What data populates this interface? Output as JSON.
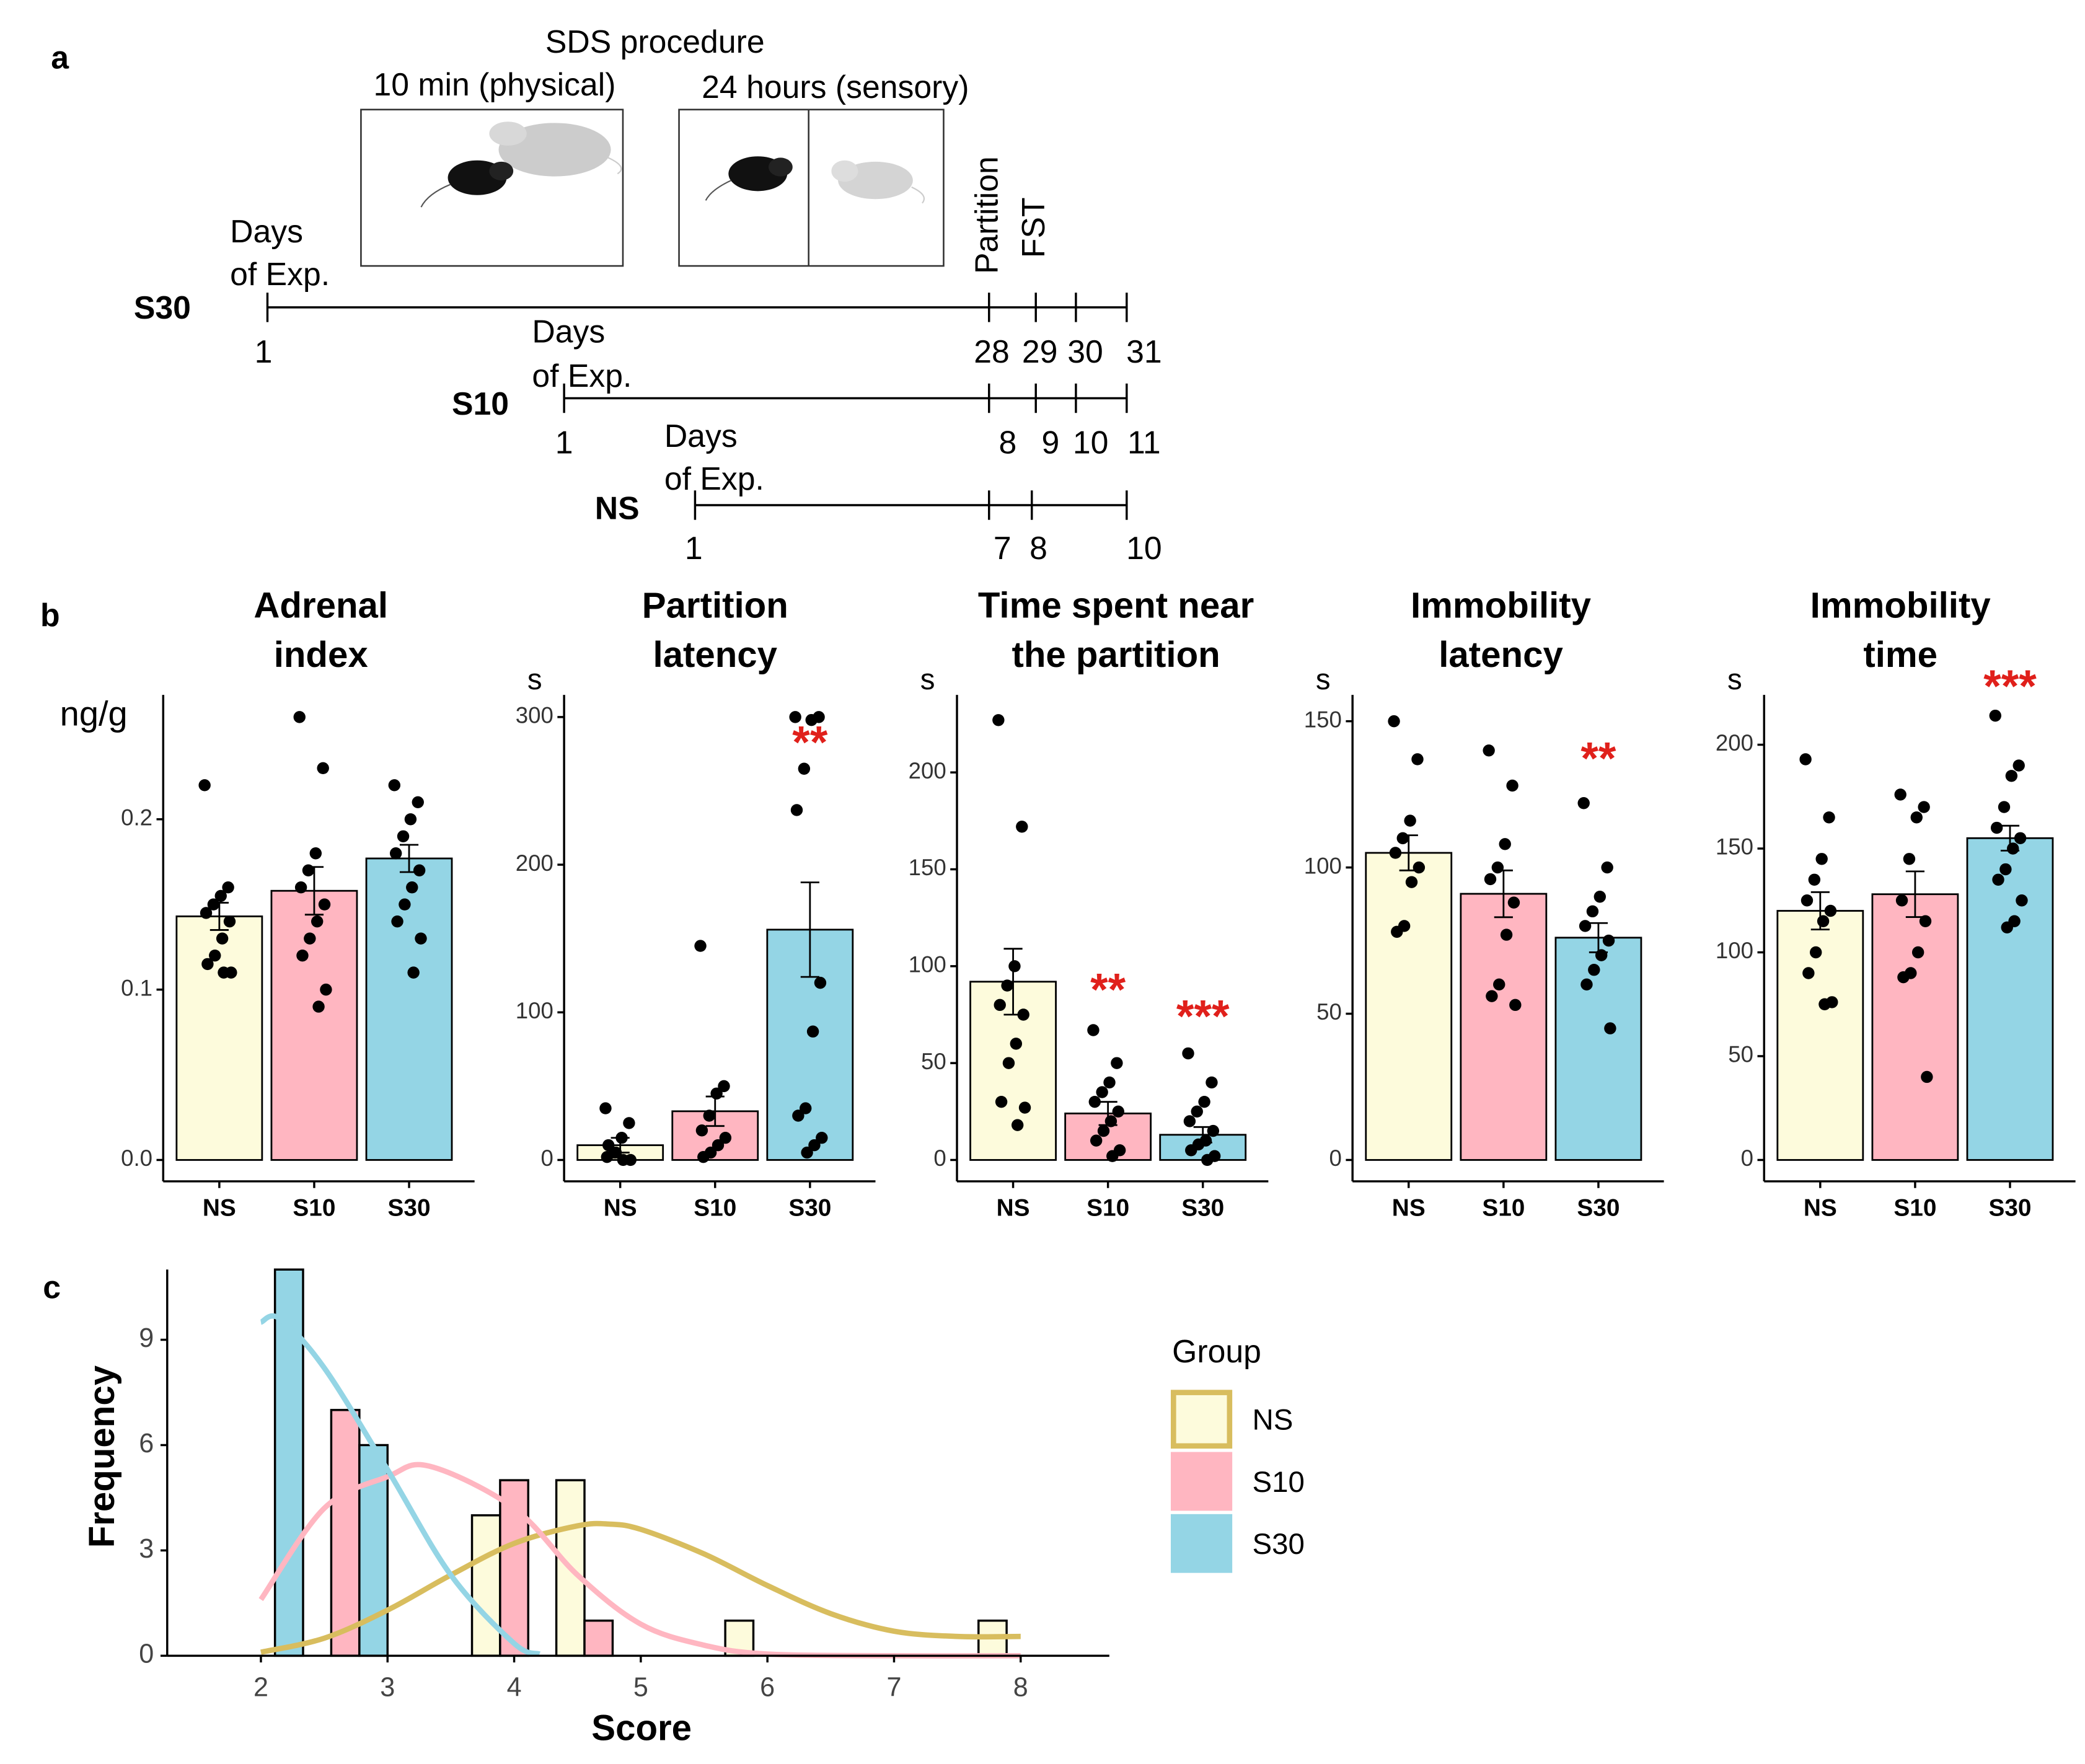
{
  "panel_labels": [
    "a",
    "b",
    "c"
  ],
  "timeline": {
    "title": "SDS procedure",
    "physical": "10 min (physical)",
    "sensory": "24 hours (sensory)",
    "events": [
      "Partition",
      "FST"
    ],
    "rows": [
      {
        "name": "S30",
        "days_label": [
          "Days",
          "of Exp."
        ],
        "days": [
          1,
          28,
          29,
          30,
          31
        ]
      },
      {
        "name": "S10",
        "days_label": [
          "Days",
          "of Exp."
        ],
        "days": [
          1,
          8,
          9,
          10,
          11
        ]
      },
      {
        "name": "NS",
        "days_label": [
          "Days",
          "of Exp."
        ],
        "days": [
          1,
          7,
          8,
          10
        ]
      }
    ]
  },
  "chart_data": [
    {
      "type": "bar",
      "title": [
        "Adrenal",
        "index"
      ],
      "y_label": "ng/g",
      "categories": [
        "NS",
        "S10",
        "S30"
      ],
      "colors": [
        "#fdfbdc",
        "#ffb6c1",
        "#94d5e5"
      ],
      "values": [
        0.143,
        0.158,
        0.177
      ],
      "errors": [
        0.008,
        0.014,
        0.008
      ],
      "points": [
        [
          0.22,
          0.16,
          0.155,
          0.15,
          0.145,
          0.14,
          0.13,
          0.12,
          0.115,
          0.11,
          0.11
        ],
        [
          0.26,
          0.23,
          0.18,
          0.17,
          0.16,
          0.15,
          0.14,
          0.13,
          0.12,
          0.1,
          0.09
        ],
        [
          0.22,
          0.21,
          0.2,
          0.19,
          0.18,
          0.17,
          0.16,
          0.15,
          0.14,
          0.13,
          0.11
        ]
      ],
      "ylim": [
        0,
        0.273
      ],
      "yticks": [
        {
          "value": 0,
          "label": "0.0"
        },
        0.1,
        0.2
      ],
      "annotations": []
    },
    {
      "type": "bar",
      "title": [
        "Partition",
        "latency"
      ],
      "y_label": "s",
      "categories": [
        "NS",
        "S10",
        "S30"
      ],
      "colors": [
        "#fdfbdc",
        "#ffb6c1",
        "#94d5e5"
      ],
      "values": [
        10,
        33,
        156
      ],
      "errors": [
        5,
        10,
        32
      ],
      "points": [
        [
          35,
          25,
          15,
          5,
          2,
          0,
          0,
          5,
          10
        ],
        [
          145,
          50,
          45,
          30,
          20,
          15,
          10,
          5,
          2
        ],
        [
          300,
          300,
          298,
          265,
          237,
          120,
          87,
          35,
          30,
          15,
          10,
          5
        ]
      ],
      "ylim": [
        0,
        315
      ],
      "yticks": [
        0,
        100,
        200,
        300
      ],
      "annotations": [
        {
          "text": "**",
          "category": 2
        }
      ]
    },
    {
      "type": "bar",
      "title": [
        "Time spent near",
        "the partition"
      ],
      "y_label": "s",
      "categories": [
        "NS",
        "S10",
        "S30"
      ],
      "colors": [
        "#fdfbdc",
        "#ffb6c1",
        "#94d5e5"
      ],
      "values": [
        92,
        24,
        13
      ],
      "errors": [
        17,
        6,
        4
      ],
      "points": [
        [
          227,
          172,
          100,
          90,
          80,
          75,
          60,
          50,
          30,
          27,
          18
        ],
        [
          67,
          50,
          40,
          35,
          30,
          25,
          20,
          15,
          10,
          5,
          2
        ],
        [
          55,
          40,
          30,
          25,
          20,
          15,
          10,
          8,
          5,
          2,
          0
        ]
      ],
      "ylim": [
        0,
        240
      ],
      "yticks": [
        0,
        50,
        100,
        150,
        200
      ],
      "annotations": [
        {
          "text": "**",
          "category": 1
        },
        {
          "text": "***",
          "category": 2
        }
      ]
    },
    {
      "type": "bar",
      "title": [
        "Immobility",
        "latency"
      ],
      "y_label": "s",
      "categories": [
        "NS",
        "S10",
        "S30"
      ],
      "colors": [
        "#fdfbdc",
        "#ffb6c1",
        "#94d5e5"
      ],
      "values": [
        105,
        91,
        76
      ],
      "errors": [
        6,
        8,
        5
      ],
      "points": [
        [
          150,
          137,
          116,
          110,
          105,
          100,
          95,
          80,
          78
        ],
        [
          140,
          128,
          108,
          100,
          96,
          88,
          77,
          60,
          56,
          53
        ],
        [
          122,
          100,
          90,
          85,
          80,
          75,
          70,
          65,
          60,
          45
        ]
      ],
      "ylim": [
        0,
        159
      ],
      "yticks": [
        0,
        50,
        100,
        150
      ],
      "annotations": [
        {
          "text": "**",
          "category": 2
        }
      ]
    },
    {
      "type": "bar",
      "title": [
        "Immobility",
        "time"
      ],
      "y_label": "s",
      "categories": [
        "NS",
        "S10",
        "S30"
      ],
      "colors": [
        "#fdfbdc",
        "#ffb6c1",
        "#94d5e5"
      ],
      "values": [
        120,
        128,
        155
      ],
      "errors": [
        9,
        11,
        6
      ],
      "points": [
        [
          193,
          165,
          145,
          135,
          125,
          120,
          115,
          100,
          90,
          76,
          75
        ],
        [
          176,
          170,
          165,
          145,
          125,
          115,
          100,
          90,
          88,
          40
        ],
        [
          214,
          190,
          185,
          170,
          160,
          155,
          150,
          140,
          135,
          125,
          115,
          112
        ]
      ],
      "ylim": [
        0,
        224
      ],
      "yticks": [
        0,
        50,
        100,
        150,
        200
      ],
      "annotations": [
        {
          "text": "***",
          "category": 2
        }
      ]
    },
    {
      "type": "histogram",
      "x_label": "Score",
      "y_label": "Frequency",
      "legend_title": "Group",
      "bins": [
        1.667,
        2.333,
        3,
        3.667,
        4.333,
        5,
        5.667,
        6.333,
        7,
        7.667,
        8.333
      ],
      "series": [
        {
          "name": "NS",
          "color": "#fdfbdc",
          "curve_color": "#d8bd5e",
          "values": [
            0,
            0,
            0,
            4,
            5,
            0,
            1,
            0,
            0,
            1
          ],
          "curve": {
            "x": [
              2,
              2.5,
              3,
              3.5,
              4,
              4.5,
              4.75,
              5,
              5.5,
              6,
              6.5,
              7,
              7.5,
              8
            ],
            "y": [
              0.1,
              0.5,
              1.3,
              2.3,
              3.2,
              3.7,
              3.75,
              3.6,
              2.9,
              2.0,
              1.2,
              0.7,
              0.55,
              0.55
            ]
          }
        },
        {
          "name": "S10",
          "color": "#ffb6c1",
          "curve_color": "#ffb6c1",
          "values": [
            0,
            7,
            0,
            5,
            1,
            0,
            0,
            0,
            0,
            0
          ],
          "curve": {
            "x": [
              2,
              2.5,
              3,
              3.33,
              4,
              4.5,
              5,
              5.5,
              6,
              7,
              8
            ],
            "y": [
              1.6,
              4.2,
              5.1,
              5.4,
              4.2,
              2.3,
              0.9,
              0.3,
              0.05,
              0,
              0
            ]
          }
        },
        {
          "name": "S30",
          "color": "#94d5e5",
          "curve_color": "#94d5e5",
          "values": [
            11,
            6,
            0,
            0,
            0,
            0,
            0,
            0,
            0,
            0
          ],
          "curve": {
            "x": [
              2,
              2.15,
              2.5,
              3,
              3.5,
              4,
              4.2
            ],
            "y": [
              9.5,
              9.6,
              8.2,
              5.3,
              2.3,
              0.35,
              0.05
            ]
          }
        }
      ],
      "xlim": [
        1.26,
        8.7
      ],
      "xticks": [
        2,
        3,
        4,
        5,
        6,
        7,
        8
      ],
      "ylim": [
        0,
        11
      ],
      "yticks": [
        0,
        3,
        6,
        9
      ]
    }
  ]
}
